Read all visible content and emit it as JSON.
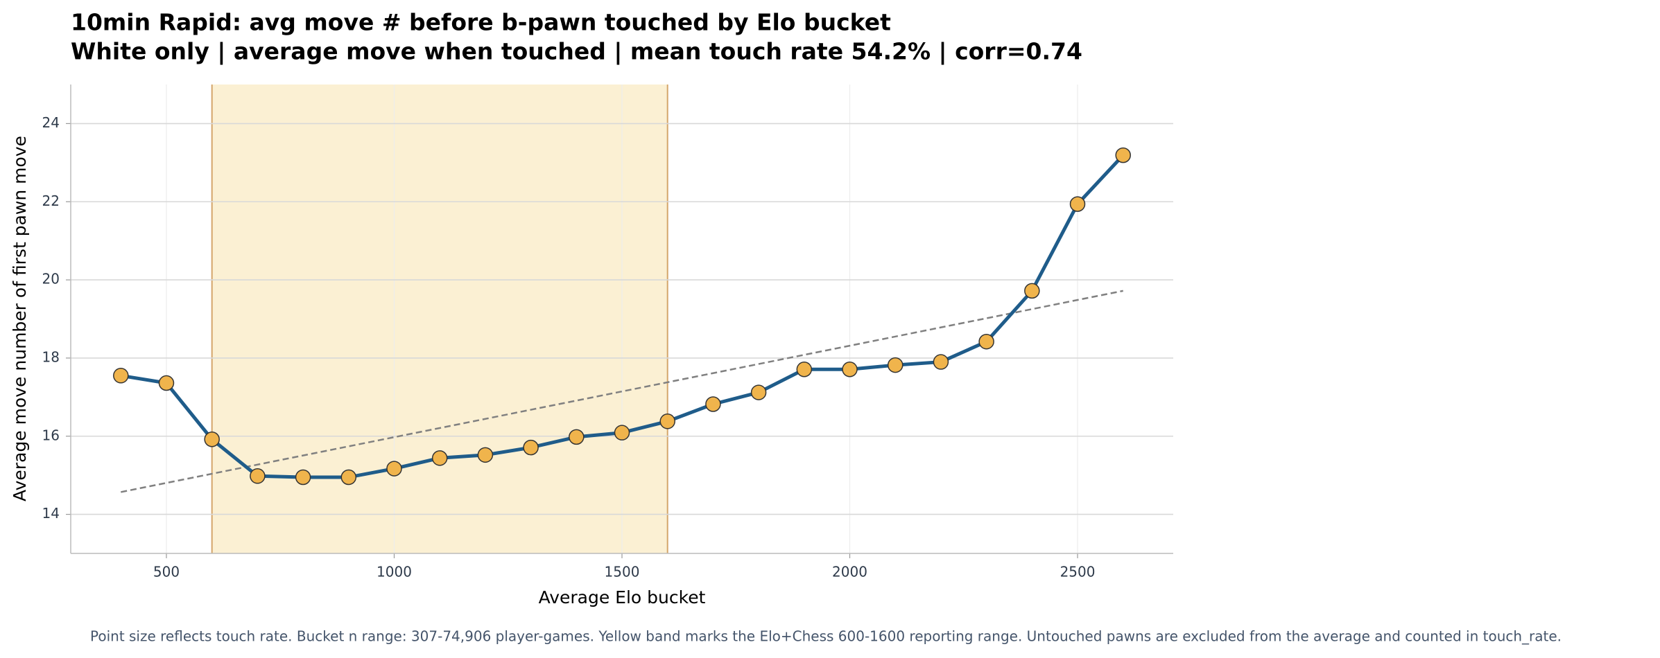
{
  "chart_data": {
    "type": "line",
    "title": "10min Rapid: avg move # before b-pawn touched by Elo bucket",
    "subtitle": "White only | average move when touched | mean touch rate 54.2% | corr=0.74",
    "x_label": "Average Elo bucket",
    "y_label": "Average move number of first pawn move",
    "footnote": "Point size reflects touch rate. Bucket n range: 307-74,906 player-games. Yellow band marks the Elo+Chess 600-1600 reporting range. Untouched pawns are excluded from the average and counted in touch_rate.",
    "x": [
      400,
      500,
      600,
      700,
      800,
      900,
      1000,
      1100,
      1200,
      1300,
      1400,
      1500,
      1600,
      1700,
      1800,
      1900,
      2000,
      2100,
      2200,
      2300,
      2400,
      2500,
      2600
    ],
    "series": [
      {
        "name": "Average move",
        "color": "#1f5c8a",
        "values": [
          17.55,
          17.36,
          15.92,
          14.98,
          14.95,
          14.95,
          15.17,
          15.44,
          15.52,
          15.71,
          15.98,
          16.09,
          16.38,
          16.82,
          17.12,
          17.71,
          17.71,
          17.82,
          17.9,
          18.42,
          19.72,
          21.94,
          23.19
        ]
      }
    ],
    "marker_color": "#f0b44c",
    "trend": {
      "x": [
        400,
        2600
      ],
      "values": [
        14.57,
        19.72
      ],
      "color": "#808080"
    },
    "band": {
      "range": [
        600,
        1600
      ],
      "color": "#fbf0d3",
      "edge_color": "#d4a56a"
    },
    "xlim": [
      290,
      2710
    ],
    "ylim": [
      13,
      25
    ],
    "xticks": [
      500,
      1000,
      1500,
      2000,
      2500
    ],
    "yticks": [
      14,
      16,
      18,
      20,
      22,
      24
    ],
    "grid": true
  }
}
